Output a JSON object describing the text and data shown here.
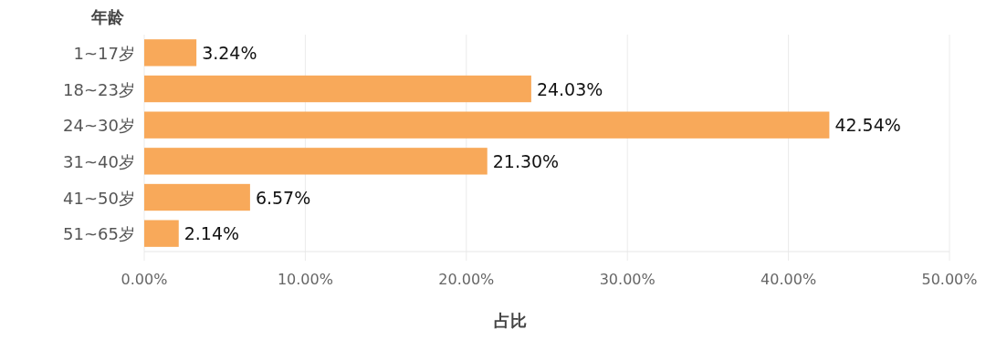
{
  "chart_data": {
    "type": "bar",
    "orientation": "horizontal",
    "ylabel": "年龄",
    "xlabel": "占比",
    "categories": [
      "1~17岁",
      "18~23岁",
      "24~30岁",
      "31~40岁",
      "41~50岁",
      "51~65岁"
    ],
    "values": [
      3.24,
      24.03,
      42.54,
      21.3,
      6.57,
      2.14
    ],
    "value_labels": [
      "3.24%",
      "24.03%",
      "42.54%",
      "21.30%",
      "6.57%",
      "2.14%"
    ],
    "color": "#f8a95a",
    "xlim": [
      0,
      50
    ],
    "xticks": [
      {
        "value": 0,
        "label": "0.00%"
      },
      {
        "value": 10,
        "label": "10.00%"
      },
      {
        "value": 20,
        "label": "20.00%"
      },
      {
        "value": 30,
        "label": "30.00%"
      },
      {
        "value": 40,
        "label": "40.00%"
      },
      {
        "value": 50,
        "label": "50.00%"
      }
    ],
    "grid": "x"
  }
}
